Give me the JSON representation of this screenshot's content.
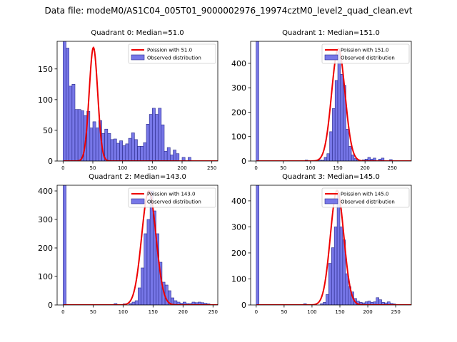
{
  "figure": {
    "suptitle": "Data file: modeM0/AS1C04_005T01_9000002976_19974cztM0_level2_quad_clean.evt",
    "colors": {
      "bar_fill": "#7777e8",
      "bar_edge": "#2a2a8a",
      "line": "#ee0000",
      "axis": "#000000"
    }
  },
  "chart_data": [
    {
      "type": "bar",
      "title": "Quadrant 0: Median=51.0",
      "xlim": [
        -10,
        260
      ],
      "ylim": [
        0,
        195
      ],
      "xticks": [
        0,
        50,
        100,
        150,
        200,
        250
      ],
      "yticks": [
        0,
        50,
        100,
        150
      ],
      "legend": {
        "placement": "top-right",
        "line_label": "Poission with 51.0",
        "bar_label": "Observed distribution"
      },
      "poisson_mean": 51.0,
      "poisson_peak": 185,
      "bin_width": 5,
      "bins": [
        [
          0,
          200
        ],
        [
          5,
          184
        ],
        [
          10,
          122
        ],
        [
          15,
          125
        ],
        [
          20,
          84
        ],
        [
          25,
          84
        ],
        [
          30,
          82
        ],
        [
          35,
          74
        ],
        [
          40,
          81
        ],
        [
          45,
          54
        ],
        [
          50,
          64
        ],
        [
          55,
          54
        ],
        [
          60,
          66
        ],
        [
          65,
          45
        ],
        [
          70,
          52
        ],
        [
          75,
          45
        ],
        [
          80,
          35
        ],
        [
          85,
          36
        ],
        [
          90,
          29
        ],
        [
          95,
          33
        ],
        [
          100,
          25
        ],
        [
          105,
          28
        ],
        [
          110,
          37
        ],
        [
          115,
          46
        ],
        [
          120,
          35
        ],
        [
          125,
          24
        ],
        [
          130,
          24
        ],
        [
          135,
          30
        ],
        [
          140,
          60
        ],
        [
          145,
          76
        ],
        [
          150,
          86
        ],
        [
          155,
          76
        ],
        [
          160,
          86
        ],
        [
          165,
          59
        ],
        [
          170,
          16
        ],
        [
          175,
          22
        ],
        [
          180,
          10
        ],
        [
          185,
          18
        ],
        [
          190,
          12
        ],
        [
          195,
          0
        ],
        [
          200,
          6
        ],
        [
          205,
          0
        ],
        [
          210,
          6
        ]
      ]
    },
    {
      "type": "bar",
      "title": "Quadrant 1: Median=151.0",
      "xlim": [
        -10,
        285
      ],
      "ylim": [
        0,
        490
      ],
      "xticks": [
        0,
        50,
        100,
        150,
        200,
        250
      ],
      "yticks": [
        0,
        100,
        200,
        300,
        400
      ],
      "legend": {
        "placement": "top-right",
        "line_label": "Poission with 151.0",
        "bar_label": "Observed distribution"
      },
      "poisson_mean": 151.0,
      "poisson_peak": 460,
      "bin_width": 5,
      "bins": [
        [
          0,
          490
        ],
        [
          90,
          4
        ],
        [
          110,
          3
        ],
        [
          115,
          4
        ],
        [
          120,
          3
        ],
        [
          125,
          15
        ],
        [
          130,
          30
        ],
        [
          135,
          120
        ],
        [
          140,
          215
        ],
        [
          145,
          330
        ],
        [
          150,
          450
        ],
        [
          155,
          355
        ],
        [
          160,
          310
        ],
        [
          165,
          130
        ],
        [
          170,
          60
        ],
        [
          175,
          25
        ],
        [
          180,
          10
        ],
        [
          185,
          5
        ],
        [
          195,
          5
        ],
        [
          200,
          8
        ],
        [
          205,
          15
        ],
        [
          210,
          8
        ],
        [
          215,
          12
        ],
        [
          225,
          8
        ],
        [
          230,
          12
        ],
        [
          245,
          6
        ]
      ]
    },
    {
      "type": "bar",
      "title": "Quadrant 2: Median=143.0",
      "xlim": [
        -10,
        258
      ],
      "ylim": [
        0,
        420
      ],
      "xticks": [
        0,
        50,
        100,
        150,
        200,
        250
      ],
      "yticks": [
        0,
        100,
        200,
        300,
        400
      ],
      "legend": {
        "placement": "top-right",
        "line_label": "Poission with 143.0",
        "bar_label": "Observed distribution"
      },
      "poisson_mean": 143.0,
      "poisson_peak": 400,
      "bin_width": 5,
      "bins": [
        [
          0,
          420
        ],
        [
          85,
          5
        ],
        [
          100,
          4
        ],
        [
          110,
          5
        ],
        [
          115,
          10
        ],
        [
          120,
          15
        ],
        [
          125,
          60
        ],
        [
          130,
          130
        ],
        [
          135,
          250
        ],
        [
          140,
          300
        ],
        [
          145,
          400
        ],
        [
          150,
          330
        ],
        [
          155,
          250
        ],
        [
          160,
          150
        ],
        [
          165,
          80
        ],
        [
          170,
          70
        ],
        [
          175,
          50
        ],
        [
          180,
          25
        ],
        [
          185,
          15
        ],
        [
          190,
          10
        ],
        [
          195,
          6
        ],
        [
          200,
          10
        ],
        [
          205,
          5
        ],
        [
          210,
          5
        ],
        [
          215,
          10
        ],
        [
          220,
          8
        ],
        [
          225,
          10
        ],
        [
          230,
          8
        ],
        [
          235,
          6
        ],
        [
          240,
          4
        ]
      ]
    },
    {
      "type": "bar",
      "title": "Quadrant 3: Median=145.0",
      "xlim": [
        -10,
        278
      ],
      "ylim": [
        0,
        460
      ],
      "xticks": [
        0,
        50,
        100,
        150,
        200,
        250
      ],
      "yticks": [
        0,
        100,
        200,
        300,
        400
      ],
      "legend": {
        "placement": "top-right",
        "line_label": "Poission with 145.0",
        "bar_label": "Observed distribution"
      },
      "poisson_mean": 145.0,
      "poisson_peak": 440,
      "bin_width": 5,
      "bins": [
        [
          0,
          460
        ],
        [
          85,
          5
        ],
        [
          115,
          5
        ],
        [
          120,
          10
        ],
        [
          125,
          40
        ],
        [
          130,
          160
        ],
        [
          135,
          220
        ],
        [
          140,
          300
        ],
        [
          145,
          430
        ],
        [
          150,
          300
        ],
        [
          155,
          250
        ],
        [
          160,
          120
        ],
        [
          165,
          70
        ],
        [
          170,
          50
        ],
        [
          175,
          25
        ],
        [
          180,
          15
        ],
        [
          185,
          10
        ],
        [
          190,
          8
        ],
        [
          195,
          12
        ],
        [
          200,
          15
        ],
        [
          205,
          10
        ],
        [
          210,
          12
        ],
        [
          215,
          28
        ],
        [
          220,
          20
        ],
        [
          225,
          10
        ],
        [
          230,
          8
        ],
        [
          235,
          12
        ],
        [
          240,
          6
        ],
        [
          245,
          4
        ]
      ]
    }
  ]
}
